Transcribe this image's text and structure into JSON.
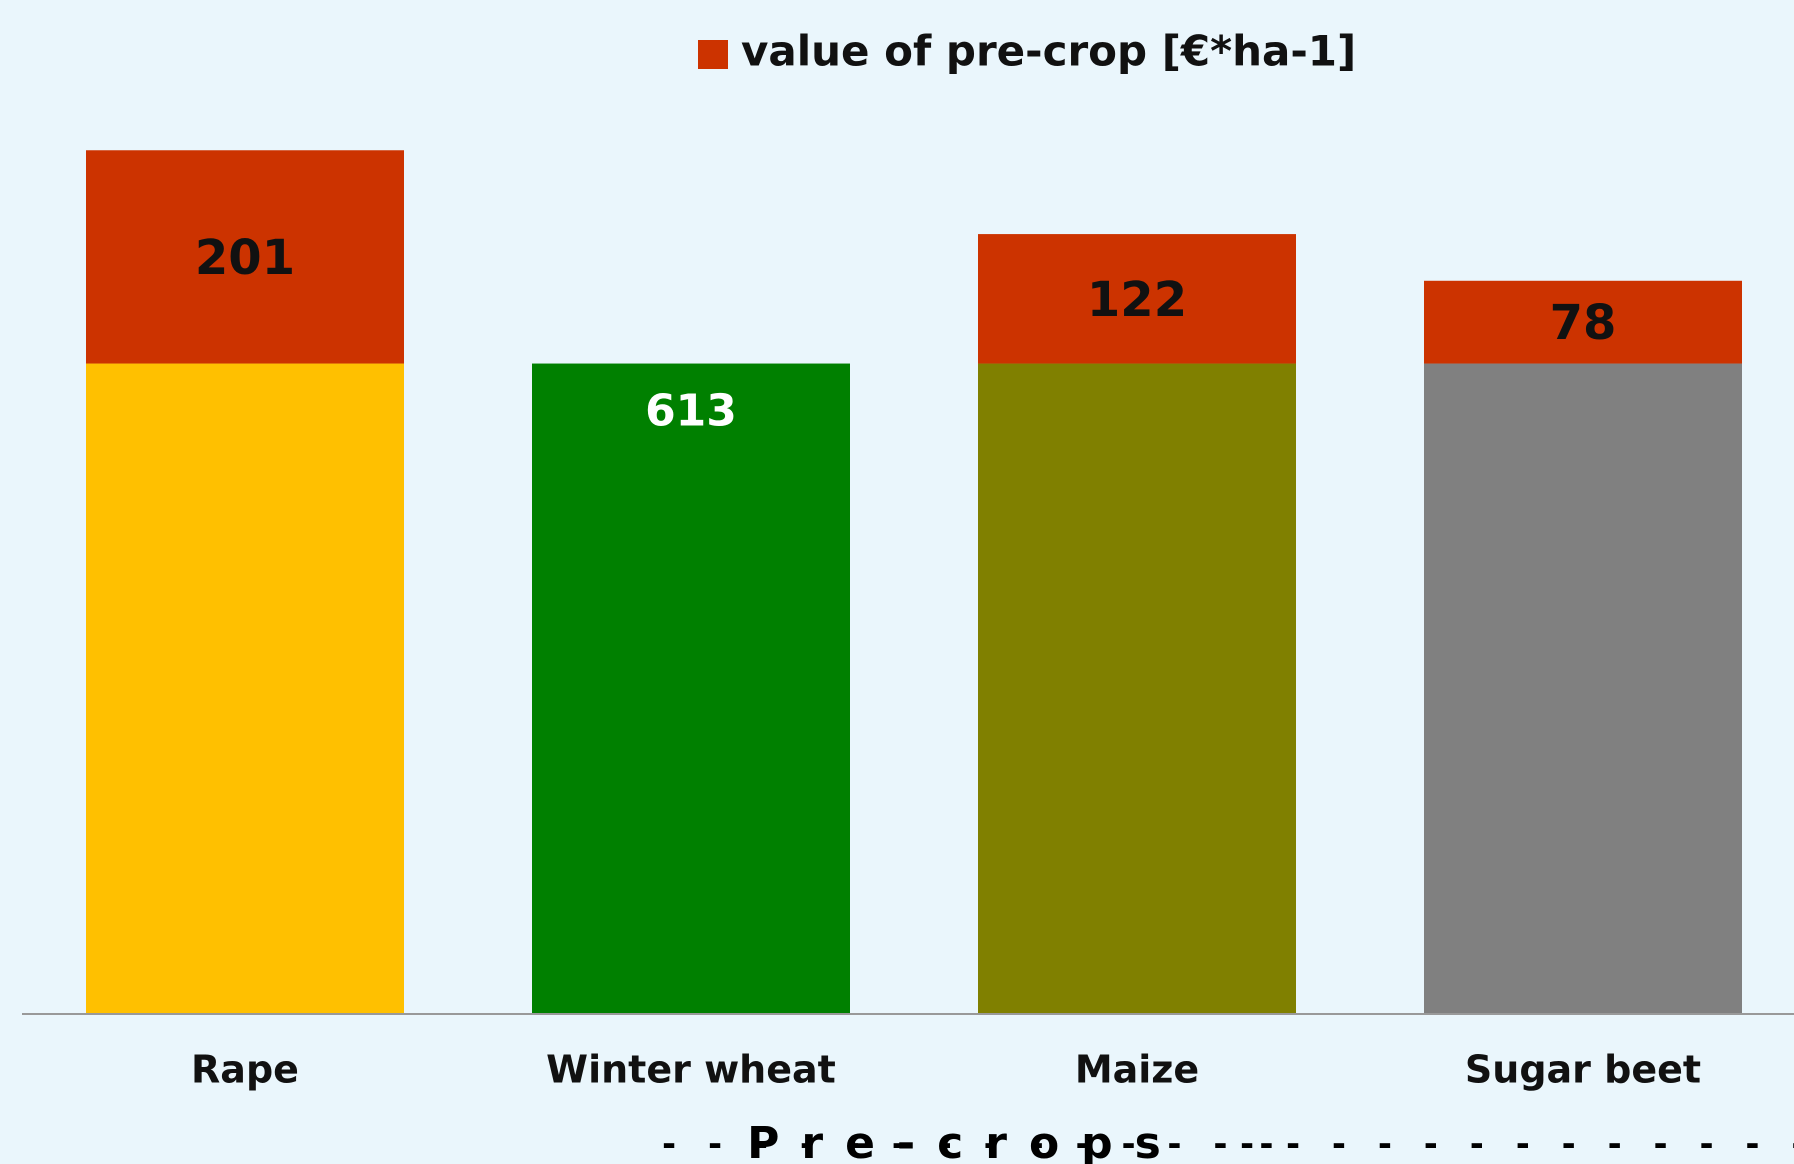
{
  "chart_data": {
    "type": "stacked_bar",
    "categories": [
      "Rape",
      "Winter wheat",
      "Maize",
      "Sugar beet"
    ],
    "xlabel": "Pre-crops",
    "series": [
      {
        "colors": [
          "#ffc000",
          "#008000",
          "#808000",
          "#808080"
        ],
        "values": [
          613,
          613,
          613,
          613
        ],
        "value_labels": [
          null,
          "613",
          null,
          null
        ]
      },
      {
        "name": "value of pre-crop [€*ha-1]",
        "color": "#cc3300",
        "values": [
          201,
          null,
          122,
          78
        ]
      }
    ],
    "ylim": [
      0,
      900
    ],
    "legend": "top"
  }
}
